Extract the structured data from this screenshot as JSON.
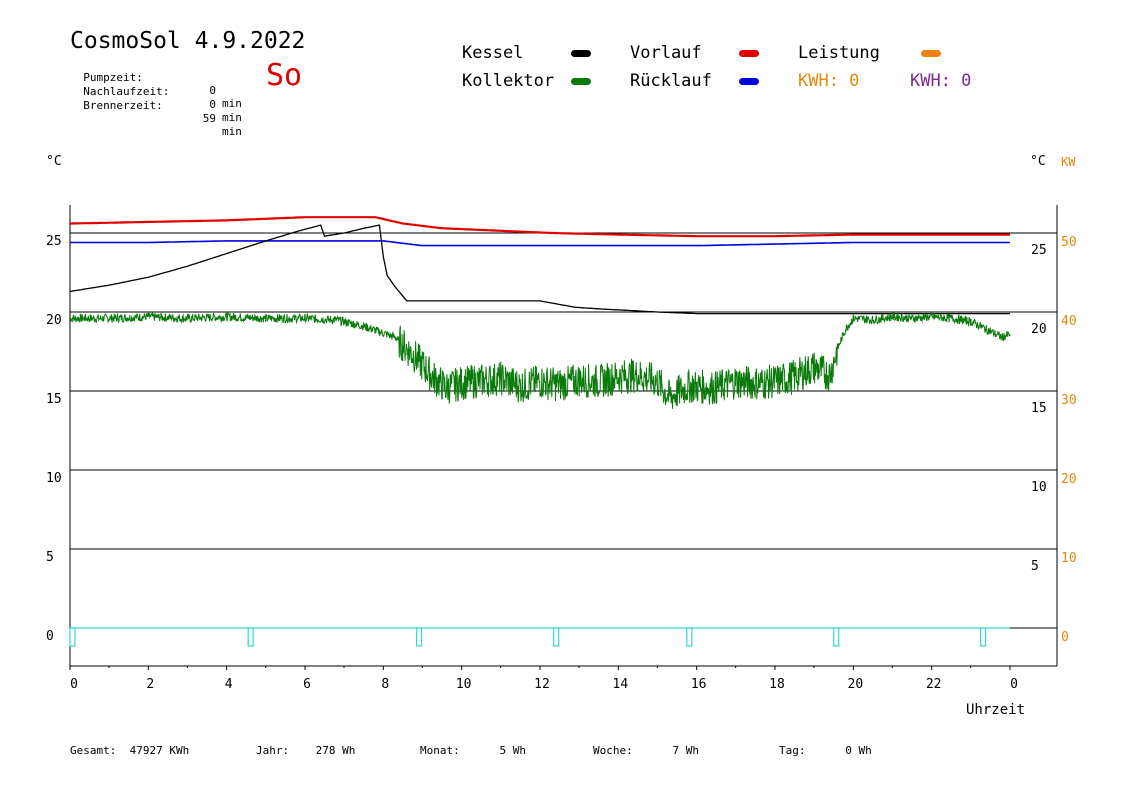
{
  "header": {
    "title": "CosmoSol 4.9.2022",
    "day": "So",
    "stats": [
      {
        "label": "Pumpzeit:",
        "value": "0",
        "unit": "min"
      },
      {
        "label": "Nachlaufzeit:",
        "value": "0",
        "unit": "min"
      },
      {
        "label": "Brennerzeit:",
        "value": "59",
        "unit": "min"
      }
    ]
  },
  "legend": {
    "kessel": {
      "label": "Kessel",
      "color": "#000000"
    },
    "vorlauf": {
      "label": "Vorlauf",
      "color": "#e00000"
    },
    "leistung": {
      "label": "Leistung",
      "color": "#f08010"
    },
    "kollektor": {
      "label": "Kollektor",
      "color": "#0a7a0a"
    },
    "ruecklauf": {
      "label": "Rücklauf",
      "color": "#0000e0"
    },
    "kwh_orange": {
      "label": "KWH: 0",
      "color": "#e08a10"
    },
    "kwh_purple": {
      "label": "KWH: 0",
      "color": "#7a2a8a"
    }
  },
  "axes": {
    "left_unit": "°C",
    "right_unit": "°C",
    "right_kw_unit": "KW",
    "x_title": "Uhrzeit"
  },
  "footer": [
    {
      "label": "Gesamt:",
      "value": "47927 KWh"
    },
    {
      "label": "Jahr:",
      "value": "278 Wh"
    },
    {
      "label": "Monat:",
      "value": "5 Wh"
    },
    {
      "label": "Woche:",
      "value": "7 Wh"
    },
    {
      "label": "Tag:",
      "value": "0 Wh"
    }
  ],
  "chart_data": {
    "type": "line",
    "xlabel": "Uhrzeit",
    "ylabel": "°C",
    "xlim": [
      0,
      24
    ],
    "ylim": [
      -2,
      27
    ],
    "x_ticks": [
      "0",
      "2",
      "4",
      "6",
      "8",
      "10",
      "12",
      "14",
      "16",
      "18",
      "20",
      "22",
      "0"
    ],
    "y_ticks_left": [
      0,
      5,
      10,
      15,
      20,
      25
    ],
    "y_ticks_right": [
      5,
      10,
      15,
      20,
      25
    ],
    "kw_ticks": [
      0,
      10,
      20,
      30,
      40,
      50
    ],
    "kw_colors": "#e08a10",
    "grid": true,
    "series": [
      {
        "name": "Vorlauf",
        "color": "#e00000",
        "x": [
          0,
          2,
          4,
          6,
          7.8,
          8.5,
          9.5,
          12.3,
          14,
          16,
          18,
          20,
          22,
          24
        ],
        "y": [
          25.6,
          25.7,
          25.8,
          26.0,
          26.0,
          25.6,
          25.3,
          25.0,
          24.9,
          24.8,
          24.8,
          24.9,
          24.9,
          24.9
        ]
      },
      {
        "name": "Rücklauf",
        "color": "#0000e0",
        "x": [
          0,
          2,
          4,
          6,
          8,
          9,
          12,
          16,
          20,
          24
        ],
        "y": [
          24.4,
          24.4,
          24.5,
          24.5,
          24.5,
          24.2,
          24.2,
          24.2,
          24.4,
          24.4
        ]
      },
      {
        "name": "Kessel",
        "color": "#000000",
        "x": [
          0,
          1,
          2,
          3,
          4,
          5,
          5.8,
          6.4,
          6.5,
          7,
          7.5,
          7.9,
          8.0,
          8.1,
          8.3,
          8.6,
          10,
          12,
          12.9,
          13.5,
          15,
          16,
          18,
          20,
          22,
          24
        ],
        "y": [
          21.3,
          21.7,
          22.2,
          22.9,
          23.7,
          24.5,
          25.1,
          25.5,
          24.8,
          25.0,
          25.3,
          25.5,
          23.5,
          22.3,
          21.6,
          20.7,
          20.7,
          20.7,
          20.3,
          20.2,
          20.0,
          19.9,
          19.9,
          19.9,
          19.9,
          19.9
        ]
      },
      {
        "name": "Kollektor",
        "color": "#0a7a0a",
        "x": [
          0,
          1,
          2,
          3,
          4,
          5,
          6,
          6.8,
          7.5,
          8.3,
          8.8,
          9.3,
          9.6,
          10,
          11,
          11.5,
          12,
          12.5,
          13,
          13.5,
          14,
          14.5,
          15,
          15.3,
          15.8,
          16.5,
          17,
          17.5,
          18,
          18.5,
          19,
          19.4,
          19.6,
          19.8,
          20,
          20.5,
          21,
          21.5,
          22,
          22.5,
          23,
          23.4,
          23.8,
          24
        ],
        "y": [
          19.6,
          19.6,
          19.7,
          19.6,
          19.7,
          19.6,
          19.6,
          19.5,
          19.1,
          18.4,
          17.2,
          15.8,
          15.2,
          15.5,
          15.8,
          15.3,
          15.6,
          15.4,
          15.7,
          15.6,
          15.9,
          16.0,
          15.6,
          14.6,
          15.3,
          15.2,
          15.6,
          15.5,
          15.6,
          15.9,
          16.5,
          16.0,
          17.7,
          18.9,
          19.6,
          19.5,
          19.7,
          19.6,
          19.7,
          19.6,
          19.4,
          18.9,
          18.4,
          18.6
        ]
      },
      {
        "name": "Leistung",
        "color": "#30d8d8",
        "x": [
          0,
          0.05,
          4.55,
          4.65,
          8.85,
          8.95,
          12.35,
          12.45,
          15.75,
          15.85,
          19.5,
          19.6,
          23.25,
          23.35,
          24
        ],
        "y": [
          0,
          0,
          0,
          0,
          0,
          0,
          0,
          0,
          0,
          0,
          0,
          0,
          0,
          0,
          0
        ]
      }
    ]
  }
}
